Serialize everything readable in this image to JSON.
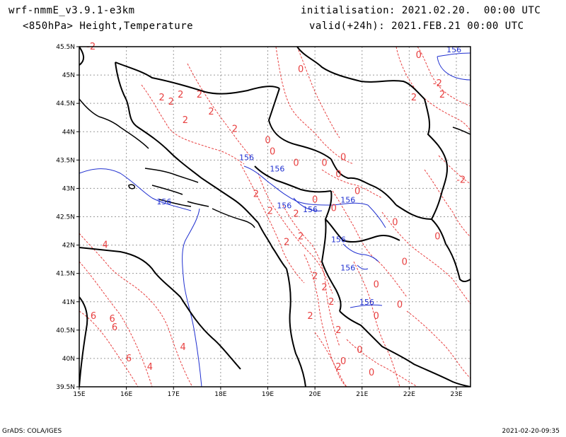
{
  "header": {
    "model": "wrf-nmmE_v3.9.1-e3km",
    "fields": "<850hPa> Height,Temperature",
    "init": "initialisation: 2021.02.20.  00:00 UTC",
    "valid": "valid(+24h): 2021.FEB.21 00:00 UTC"
  },
  "footer": {
    "left": "GrADS: COLA/IGES",
    "right": "2021-02-20-09:35"
  },
  "map": {
    "lon_range": [
      15,
      23.3
    ],
    "lat_range": [
      39.5,
      45.5
    ],
    "x_ticks": [
      "15E",
      "16E",
      "17E",
      "18E",
      "19E",
      "20E",
      "21E",
      "22E",
      "23E"
    ],
    "x_tick_values": [
      15,
      16,
      17,
      18,
      19,
      20,
      21,
      22,
      23
    ],
    "y_ticks": [
      "39.5N",
      "40N",
      "40.5N",
      "41N",
      "41.5N",
      "42N",
      "42.5N",
      "43N",
      "43.5N",
      "44N",
      "44.5N",
      "45N",
      "45.5N"
    ],
    "y_tick_values": [
      39.5,
      40,
      40.5,
      41,
      41.5,
      42,
      42.5,
      43,
      43.5,
      44,
      44.5,
      45,
      45.5
    ],
    "grid": true,
    "colors": {
      "temperature": "#e84040",
      "height": "#2030d0",
      "border": "#000000",
      "grid": "#9a9a9a"
    },
    "temperature_labels": [
      {
        "text": "-2",
        "lon": 15.25,
        "lat": 45.45
      },
      {
        "text": "2",
        "lon": 16.75,
        "lat": 44.55
      },
      {
        "text": "2",
        "lon": 16.95,
        "lat": 44.48
      },
      {
        "text": "2",
        "lon": 17.15,
        "lat": 44.6
      },
      {
        "text": "2",
        "lon": 17.55,
        "lat": 44.6
      },
      {
        "text": "2",
        "lon": 17.25,
        "lat": 44.15
      },
      {
        "text": "2",
        "lon": 17.8,
        "lat": 44.3
      },
      {
        "text": "2",
        "lon": 18.3,
        "lat": 44.0
      },
      {
        "text": "0",
        "lon": 19.7,
        "lat": 45.05
      },
      {
        "text": "0",
        "lon": 19.0,
        "lat": 43.8
      },
      {
        "text": "0",
        "lon": 19.1,
        "lat": 43.6
      },
      {
        "text": "0",
        "lon": 19.6,
        "lat": 43.4
      },
      {
        "text": "0",
        "lon": 20.2,
        "lat": 43.4
      },
      {
        "text": "0",
        "lon": 20.6,
        "lat": 43.5
      },
      {
        "text": "0",
        "lon": 20.5,
        "lat": 43.2
      },
      {
        "text": "0",
        "lon": 20.9,
        "lat": 42.9
      },
      {
        "text": "0",
        "lon": 20.4,
        "lat": 42.6
      },
      {
        "text": "0",
        "lon": 21.7,
        "lat": 42.35
      },
      {
        "text": "0",
        "lon": 22.6,
        "lat": 42.1
      },
      {
        "text": "0",
        "lon": 21.9,
        "lat": 41.65
      },
      {
        "text": "0",
        "lon": 21.3,
        "lat": 41.25
      },
      {
        "text": "0",
        "lon": 21.8,
        "lat": 40.9
      },
      {
        "text": "0",
        "lon": 21.3,
        "lat": 40.7
      },
      {
        "text": "0",
        "lon": 20.95,
        "lat": 40.1
      },
      {
        "text": "0",
        "lon": 20.6,
        "lat": 39.9
      },
      {
        "text": "0",
        "lon": 21.2,
        "lat": 39.7
      },
      {
        "text": "2",
        "lon": 18.75,
        "lat": 42.85
      },
      {
        "text": "2",
        "lon": 19.05,
        "lat": 42.55
      },
      {
        "text": "2",
        "lon": 19.6,
        "lat": 42.5
      },
      {
        "text": "2",
        "lon": 19.4,
        "lat": 42.0
      },
      {
        "text": "2",
        "lon": 19.7,
        "lat": 42.1
      },
      {
        "text": "2",
        "lon": 20.0,
        "lat": 41.4
      },
      {
        "text": "2",
        "lon": 20.2,
        "lat": 41.2
      },
      {
        "text": "2",
        "lon": 20.35,
        "lat": 40.95
      },
      {
        "text": "2",
        "lon": 19.9,
        "lat": 40.7
      },
      {
        "text": "2",
        "lon": 20.5,
        "lat": 40.45
      },
      {
        "text": "2",
        "lon": 20.5,
        "lat": 39.8
      },
      {
        "text": "4",
        "lon": 15.55,
        "lat": 41.95
      },
      {
        "text": "4",
        "lon": 17.2,
        "lat": 40.15
      },
      {
        "text": "4",
        "lon": 16.5,
        "lat": 39.8
      },
      {
        "text": "6",
        "lon": 15.3,
        "lat": 40.7
      },
      {
        "text": "6",
        "lon": 15.7,
        "lat": 40.65
      },
      {
        "text": "6",
        "lon": 15.75,
        "lat": 40.5
      },
      {
        "text": "6",
        "lon": 16.05,
        "lat": 39.95
      },
      {
        "text": "-2",
        "lon": 22.6,
        "lat": 44.8
      },
      {
        "text": "-2",
        "lon": 23.1,
        "lat": 43.1
      },
      {
        "text": "2",
        "lon": 22.1,
        "lat": 44.55
      },
      {
        "text": "2",
        "lon": 22.7,
        "lat": 44.6
      },
      {
        "text": "0",
        "lon": 22.2,
        "lat": 45.3
      },
      {
        "text": "0",
        "lon": 20.0,
        "lat": 42.75
      }
    ],
    "height_labels": [
      {
        "text": "156",
        "lon": 22.95,
        "lat": 45.4
      },
      {
        "text": "156",
        "lon": 18.55,
        "lat": 43.5
      },
      {
        "text": "156",
        "lon": 19.2,
        "lat": 43.3
      },
      {
        "text": "156",
        "lon": 16.8,
        "lat": 42.72
      },
      {
        "text": "156",
        "lon": 19.35,
        "lat": 42.65
      },
      {
        "text": "156",
        "lon": 19.9,
        "lat": 42.58
      },
      {
        "text": "156",
        "lon": 20.7,
        "lat": 42.75
      },
      {
        "text": "156",
        "lon": 20.5,
        "lat": 42.05
      },
      {
        "text": "156",
        "lon": 20.7,
        "lat": 41.55
      },
      {
        "text": "156",
        "lon": 21.1,
        "lat": 40.95
      }
    ]
  }
}
